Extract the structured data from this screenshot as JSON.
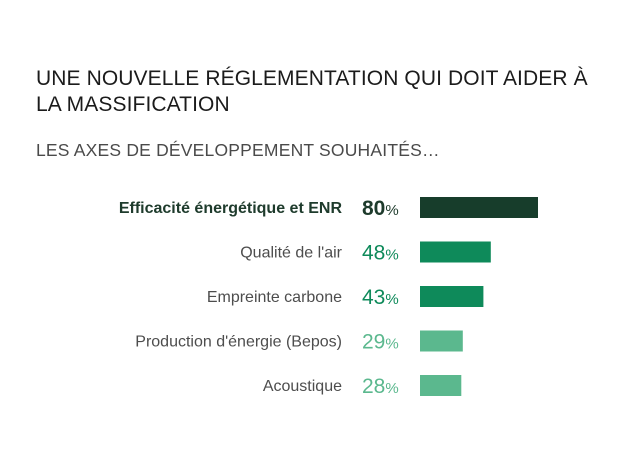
{
  "header": {
    "title": "UNE NOUVELLE RÉGLEMENTATION QUI DOIT AIDER À LA MASSIFICATION",
    "subtitle": "LES AXES DE DÉVELOPPEMENT SOUHAITÉS…"
  },
  "chart_data": {
    "type": "bar",
    "orientation": "horizontal",
    "categories": [
      "Efficacité énergétique et ENR",
      "Qualité de l'air",
      "Empreinte carbone",
      "Production d'énergie (Bepos)",
      "Acoustique"
    ],
    "values": [
      80,
      48,
      43,
      29,
      28
    ],
    "unit": "%",
    "colors": [
      "#173d2b",
      "#0e8a5a",
      "#0e8a5a",
      "#5bb88e",
      "#5bb88e"
    ],
    "label_colors": [
      "#1e3b2c",
      "#0e8a5a",
      "#0e8a5a",
      "#5bb88e",
      "#5bb88e"
    ],
    "highlighted": [
      true,
      false,
      false,
      false,
      false
    ],
    "xlim": [
      0,
      100
    ],
    "grid": false
  }
}
